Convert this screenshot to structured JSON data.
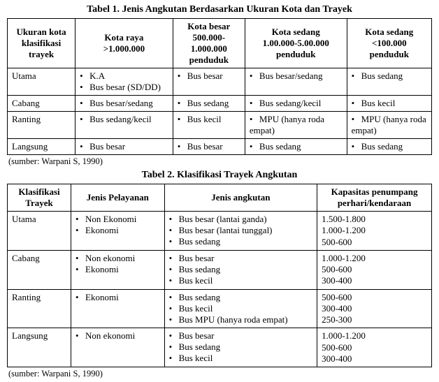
{
  "table1": {
    "title": "Tabel 1. Jenis Angkutan Berdasarkan Ukuran Kota dan Trayek",
    "headers": {
      "c1a": "Ukuran kota",
      "c1b": "klasifikasi",
      "c1c": "trayek",
      "c2a": "Kota raya",
      "c2b": ">1.000.000",
      "c3a": "Kota besar",
      "c3b": "500.000-",
      "c3c": "1.000.000",
      "c3d": "penduduk",
      "c4a": "Kota sedang",
      "c4b": "1.00.000-5.00.000",
      "c4c": "penduduk",
      "c5a": "Kota sedang",
      "c5b": "<100.000",
      "c5c": "penduduk"
    },
    "rows": [
      {
        "label": "Utama",
        "c2": [
          "K.A",
          "Bus besar (SD/DD)"
        ],
        "c3": [
          "Bus besar"
        ],
        "c4": [
          "Bus besar/sedang"
        ],
        "c5": [
          "Bus sedang"
        ]
      },
      {
        "label": "Cabang",
        "c2": [
          "Bus besar/sedang"
        ],
        "c3": [
          "Bus sedang"
        ],
        "c4": [
          "Bus sedang/kecil"
        ],
        "c5": [
          "Bus kecil"
        ]
      },
      {
        "label": "Ranting",
        "c2": [
          "Bus sedang/kecil"
        ],
        "c3": [
          "Bus kecil"
        ],
        "c4": [
          "MPU (hanya roda empat)"
        ],
        "c5": [
          "MPU (hanya roda empat)"
        ]
      },
      {
        "label": "Langsung",
        "c2": [
          "Bus besar"
        ],
        "c3": [
          "Bus besar"
        ],
        "c4": [
          "Bus sedang"
        ],
        "c5": [
          "Bus sedang"
        ]
      }
    ],
    "source": "(sumber: Warpani S, 1990)"
  },
  "table2": {
    "title": "Tabel 2. Klasifikasi Trayek Angkutan",
    "headers": {
      "c1a": "Klasifikasi",
      "c1b": "Trayek",
      "c2": "Jenis Pelayanan",
      "c3": "Jenis angkutan",
      "c4a": "Kapasitas penumpang",
      "c4b": "perhari/kendaraan"
    },
    "rows": [
      {
        "label": "Utama",
        "pelayanan": [
          "Non Ekonomi",
          "Ekonomi"
        ],
        "angkutan": [
          "Bus besar (lantai ganda)",
          "Bus besar (lantai tunggal)",
          "Bus sedang"
        ],
        "kapasitas": [
          "1.500-1.800",
          "1.000-1.200",
          "500-600"
        ]
      },
      {
        "label": "Cabang",
        "pelayanan": [
          "Non ekonomi",
          "Ekonomi"
        ],
        "angkutan": [
          "Bus besar",
          "Bus sedang",
          "Bus kecil"
        ],
        "kapasitas": [
          "1.000-1.200",
          "500-600",
          "300-400"
        ]
      },
      {
        "label": "Ranting",
        "pelayanan": [
          "Ekonomi"
        ],
        "angkutan": [
          "Bus sedang",
          "Bus kecil",
          "Bus MPU (hanya roda empat)"
        ],
        "kapasitas": [
          "500-600",
          "300-400",
          "250-300"
        ]
      },
      {
        "label": "Langsung",
        "pelayanan": [
          "Non ekonomi"
        ],
        "angkutan": [
          "Bus besar",
          "Bus sedang",
          "Bus kecil"
        ],
        "kapasitas": [
          "1.000-1.200",
          "500-600",
          "300-400"
        ]
      }
    ],
    "source": "(sumber: Warpani S, 1990)"
  }
}
